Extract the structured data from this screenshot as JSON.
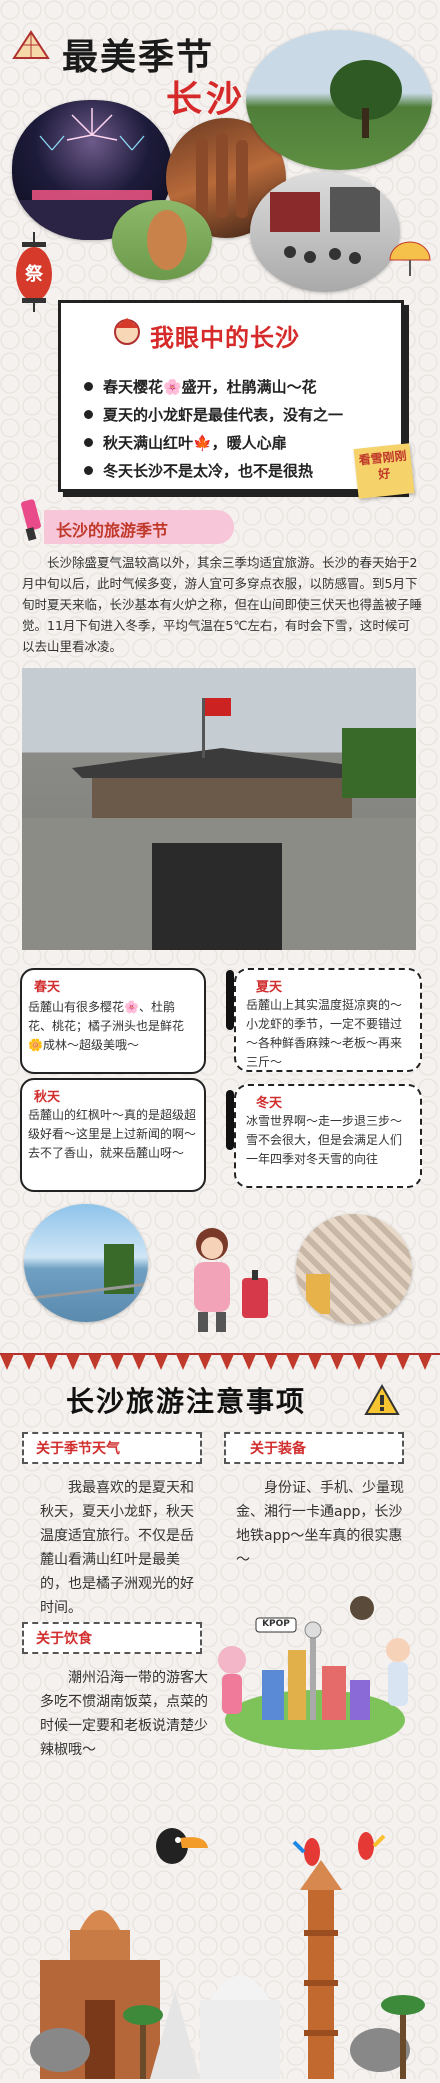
{
  "header": {
    "title_line1": "最美季节",
    "title_line2": "长沙",
    "lantern_char": "祭"
  },
  "my_changsha": {
    "title": "我眼中的长沙",
    "items": [
      "春天樱花🌸盛开，杜鹃满山～花",
      "夏天的小龙虾是最佳代表，没有之一",
      "秋天满山红叶🍁，暖人心扉",
      "冬天长沙不是太冷，也不是很热"
    ],
    "sticky_note": "看雪刚刚好"
  },
  "travel_season": {
    "title": "长沙的旅游季节",
    "paragraph": "长沙除盛夏气温较高以外，其余三季均适宜旅游。长沙的春天始于2月中旬以后，此时气候多变，游人宜可多穿点衣服，以防感冒。到5月下旬时夏天来临，长沙基本有火炉之称，但在山间即使三伏天也得盖被子睡觉。11月下旬进入冬季，平均气温在5℃左右，有时会下雪，这时候可以去山里看冰凌。"
  },
  "seasons": {
    "spring": {
      "label": "春天",
      "text": "岳麓山有很多樱花🌸、杜鹃花、桃花；橘子洲头也是鲜花🌼成林～超级美哦～"
    },
    "summer": {
      "label": "夏天",
      "text": "岳麓山上其实温度挺凉爽的～小龙虾的季节，一定不要错过～各种鲜香麻辣～老板～再来三斤～"
    },
    "autumn": {
      "label": "秋天",
      "text": "岳麓山的红枫叶～真的是超级超级好看～这里是上过新闻的啊～去不了香山，就来岳麓山呀～"
    },
    "winter": {
      "label": "冬天",
      "text": "冰雪世界啊～走一步退三步～雪不会很大，但是会满足人们一年四季对冬天雪的向往"
    }
  },
  "notes": {
    "title": "长沙旅游注意事项",
    "warning_icon": "warning-icon",
    "weather": {
      "label": "关于季节天气",
      "text": "我最喜欢的是夏天和秋天，夏天小龙虾，秋天温度适宜旅行。不仅是岳麓山看满山红叶是最美的，也是橘子洲观光的好时间。"
    },
    "gear": {
      "label": "关于装备",
      "text": "身份证、手机、少量现金、湘行一卡通app，长沙地铁app～坐车真的很实惠～"
    },
    "food": {
      "label": "关于饮食",
      "text": "潮州沿海一带的游客大多吃不惯湖南饭菜，点菜的时候一定要和老板说清楚少辣椒哦～"
    },
    "kpop_sign": "KPOP"
  },
  "colors": {
    "accent_red": "#d62a2a",
    "pink": "#f7c6d8",
    "bg": "#f4f1ee"
  }
}
